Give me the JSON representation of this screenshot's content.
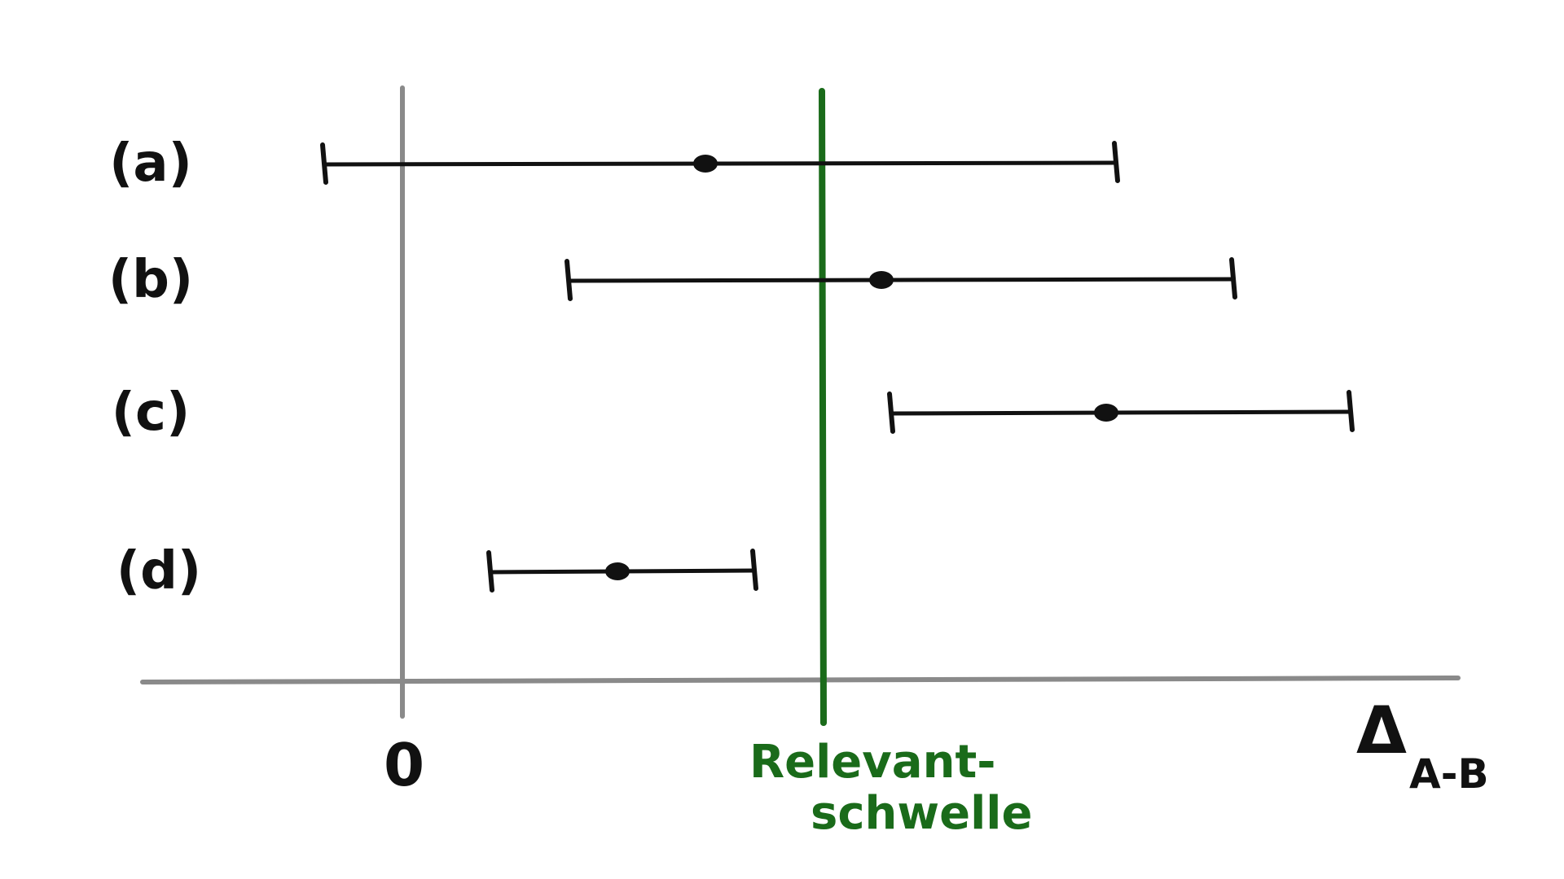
{
  "colors": {
    "background": "#ffffff",
    "ink": "#111111",
    "axis_gray": "#8a8a8a",
    "threshold_green": "#1a6b1a"
  },
  "rows": [
    {
      "label": "(a)",
      "low": -0.4,
      "point": 1.55,
      "high": 3.65
    },
    {
      "label": "(b)",
      "low": 0.85,
      "point": 2.45,
      "high": 4.25
    },
    {
      "label": "(c)",
      "low": 2.5,
      "point": 3.6,
      "high": 4.85
    },
    {
      "label": "(d)",
      "low": 0.45,
      "point": 1.1,
      "high": 1.8
    }
  ],
  "axis": {
    "zero_label": "0",
    "x_label_main": "Δ",
    "x_label_sub": "A-B"
  },
  "threshold": {
    "value": 2.15,
    "label_line1": "Relevant-",
    "label_line2": "schwelle"
  }
}
